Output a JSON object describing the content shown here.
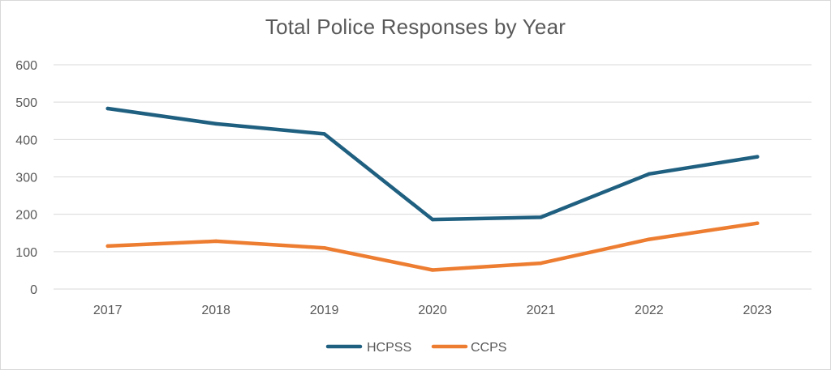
{
  "chart_data": {
    "type": "line",
    "title": "Total Police Responses by Year",
    "xlabel": "",
    "ylabel": "",
    "categories": [
      "2017",
      "2018",
      "2019",
      "2020",
      "2021",
      "2022",
      "2023"
    ],
    "ylim": [
      0,
      600
    ],
    "yticks": [
      0,
      100,
      200,
      300,
      400,
      500,
      600
    ],
    "grid": true,
    "legend_position": "bottom",
    "series": [
      {
        "name": "HCPSS",
        "color": "#1f5f80",
        "values": [
          483,
          442,
          415,
          186,
          192,
          308,
          354
        ]
      },
      {
        "name": "CCPS",
        "color": "#ed7d31",
        "values": [
          115,
          128,
          110,
          51,
          69,
          133,
          176
        ]
      }
    ]
  }
}
